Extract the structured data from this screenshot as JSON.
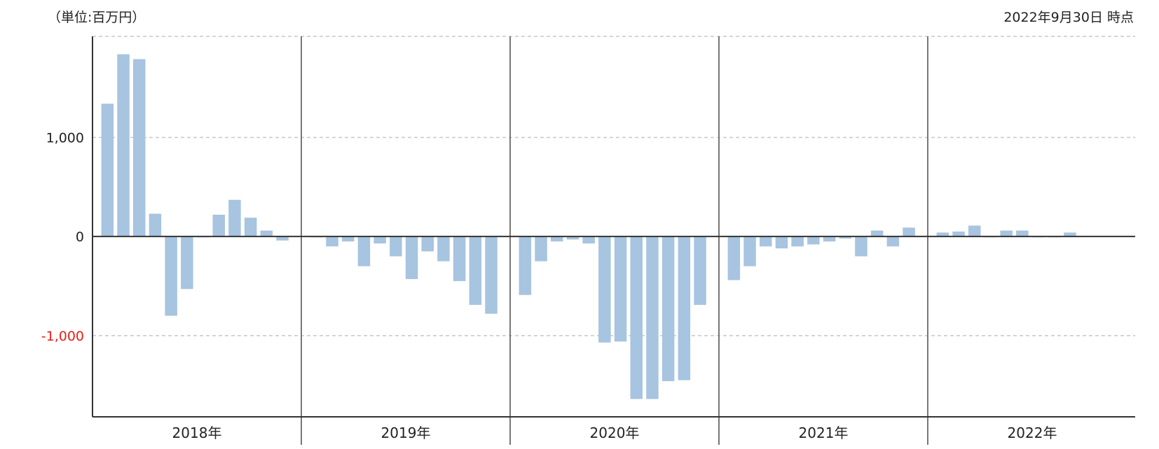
{
  "unit_note": "（単位:百万円）",
  "as_of": "2022年9月30日 時点",
  "colors": {
    "bar": "#a7c4e0",
    "negative_tick": "#e8201a",
    "axis": "#333333",
    "grid": "#c8c8c8"
  },
  "chart_data": {
    "type": "bar",
    "title": "",
    "xlabel": "",
    "ylabel": "",
    "ylim": [
      -1820,
      2020
    ],
    "grid": true,
    "yticks": [
      {
        "value": 1000,
        "label": "1,000",
        "negative": false
      },
      {
        "value": 0,
        "label": "0",
        "negative": false
      },
      {
        "value": -1000,
        "label": "-1,000",
        "negative": true
      }
    ],
    "years": [
      {
        "label": "2018年",
        "values": [
          1340,
          1840,
          1790,
          230,
          -800,
          -530,
          -5,
          220,
          370,
          190,
          60,
          -40
        ]
      },
      {
        "label": "2019年",
        "values": [
          -5,
          -100,
          -50,
          -300,
          -70,
          -200,
          -430,
          -150,
          -250,
          -450,
          -690,
          -780
        ]
      },
      {
        "label": "2020年",
        "values": [
          -590,
          -250,
          -50,
          -30,
          -70,
          -1070,
          -1060,
          -1640,
          -1640,
          -1460,
          -1450,
          -690
        ]
      },
      {
        "label": "2021年",
        "values": [
          -440,
          -300,
          -100,
          -120,
          -100,
          -80,
          -50,
          -20,
          -200,
          60,
          -100,
          90
        ]
      },
      {
        "label": "2022年",
        "values": [
          40,
          50,
          110,
          0,
          60,
          60,
          0,
          -5,
          40
        ]
      }
    ]
  }
}
